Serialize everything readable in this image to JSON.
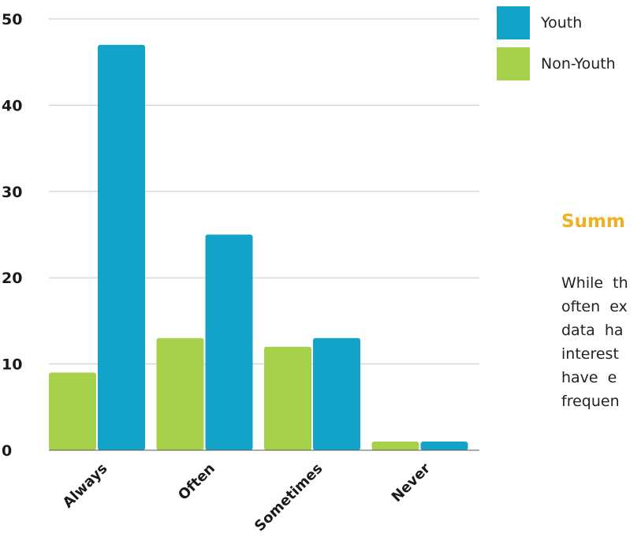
{
  "chart_data": {
    "type": "bar",
    "categories": [
      "Always",
      "Often",
      "Sometimes",
      "Never"
    ],
    "series": [
      {
        "name": "Non-Youth",
        "values": [
          9,
          13,
          12,
          1
        ],
        "color": "#a8d14b"
      },
      {
        "name": "Youth",
        "values": [
          47,
          25,
          13,
          1
        ],
        "color": "#13a3c8"
      }
    ],
    "yticks": [
      0,
      10,
      20,
      30,
      40,
      50
    ],
    "ylim": [
      0,
      50
    ],
    "grid": true,
    "legend": "top-right",
    "title": "",
    "xlabel": "",
    "ylabel": ""
  },
  "legend": {
    "items": [
      {
        "label": "Youth",
        "color": "#13a3c8"
      },
      {
        "label": "Non-Youth",
        "color": "#a8d14b"
      }
    ]
  },
  "summary": {
    "heading": "Summ",
    "heading_color": "#f2b01e",
    "lines": [
      "While th",
      "often ex",
      "data ha",
      "interest",
      "have e",
      "frequen"
    ]
  }
}
